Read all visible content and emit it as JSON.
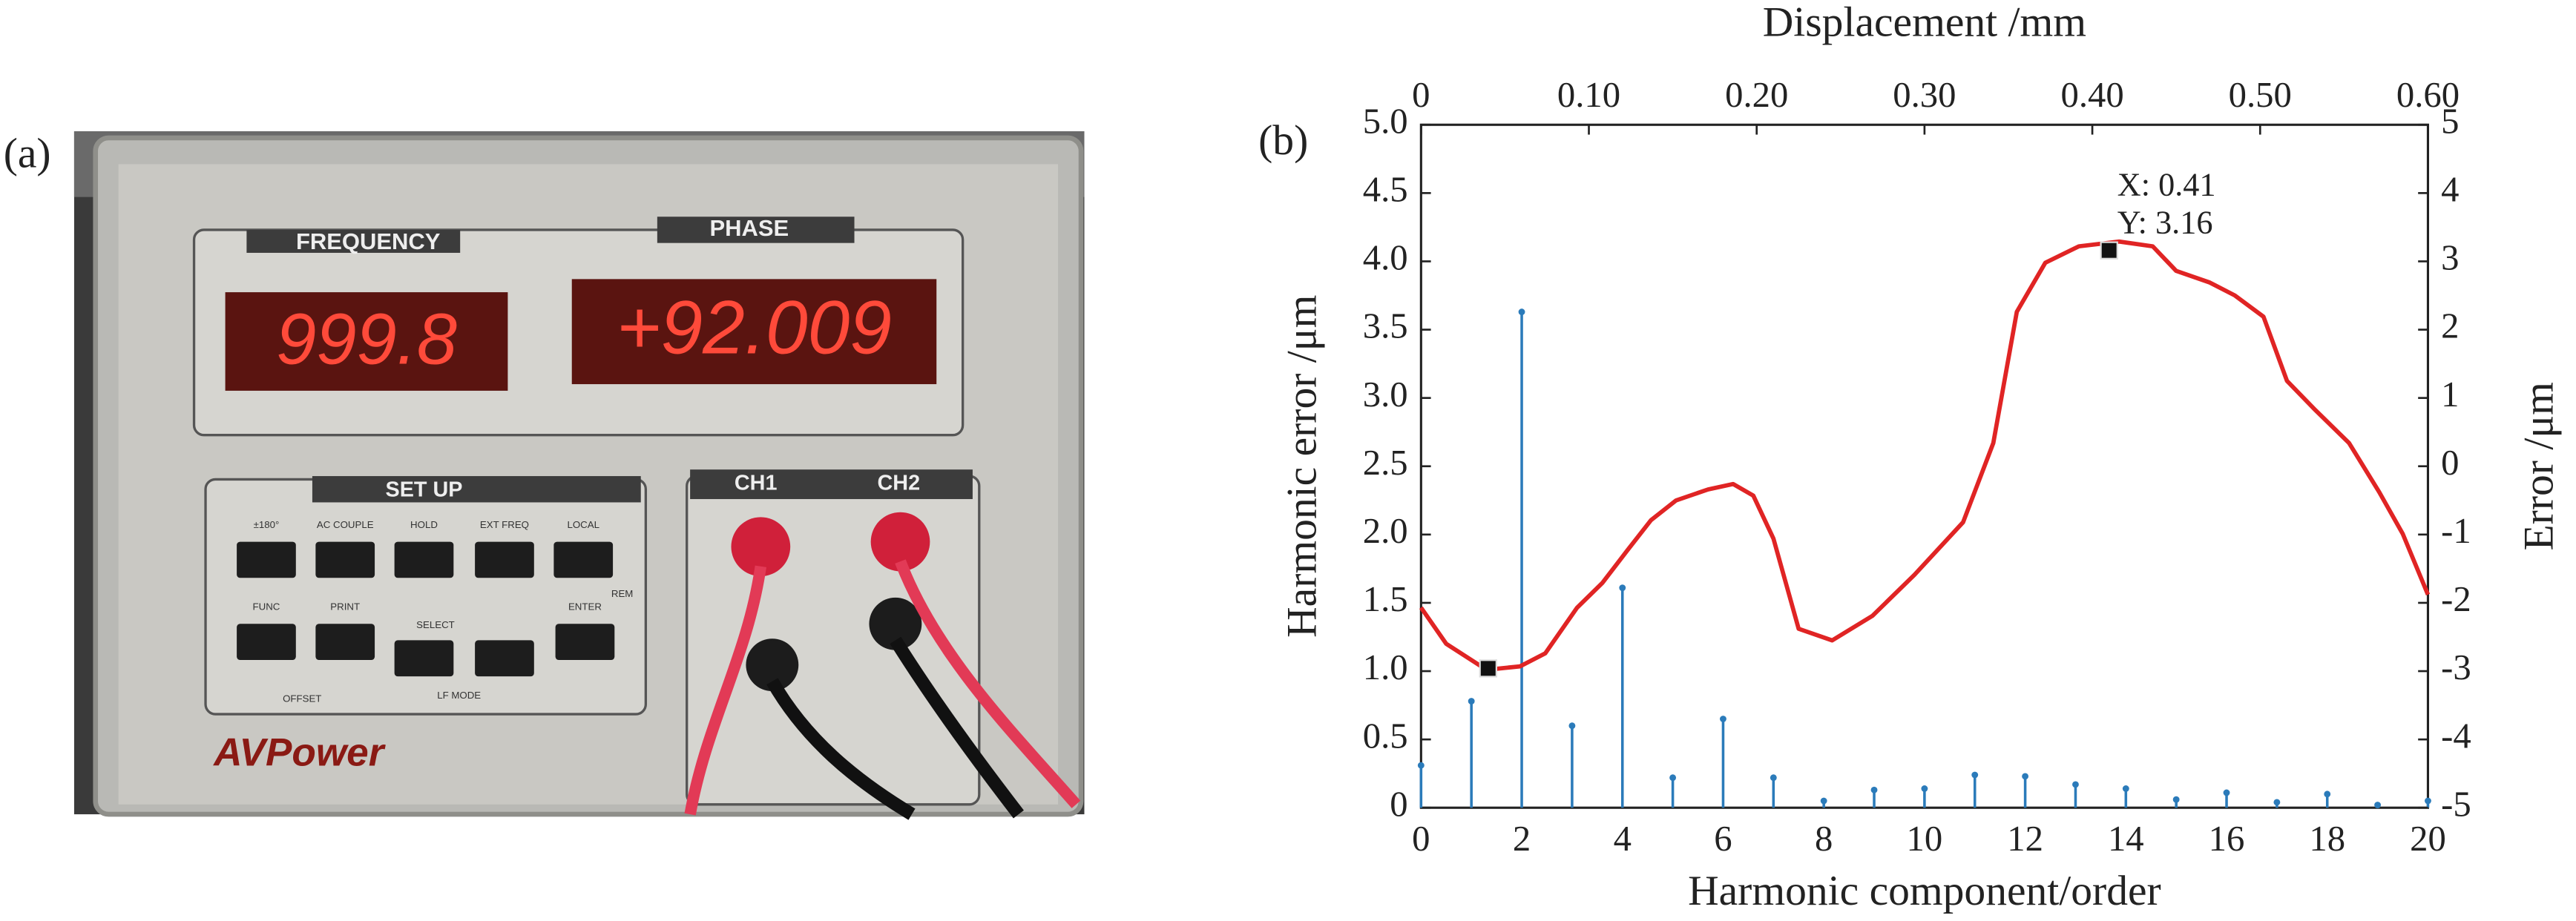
{
  "panels": {
    "a": "(a)",
    "b": "(b)"
  },
  "photo": {
    "frequency_label": "FREQUENCY",
    "phase_label": "PHASE",
    "frequency_display": "999.8",
    "phase_display": "+92.009",
    "setup_label": "SET UP",
    "buttons": [
      "±180°",
      "AC COUPLE",
      "HOLD",
      "EXT FREQ",
      "LOCAL",
      "FUNC",
      "PRINT",
      "ENTER"
    ],
    "select_label": "SELECT",
    "indicators": [
      "REM",
      "OFFSET",
      "LF MODE"
    ],
    "channels": [
      "CH1",
      "CH2"
    ],
    "brand": "AVPower"
  },
  "chart_data": [
    {
      "type": "stem",
      "x_axis": "bottom",
      "y_axis": "left",
      "xlabel": "Harmonic component/order",
      "ylabel": "Harmonic error /μm",
      "color": "#2b7bba",
      "x": [
        0,
        1,
        2,
        3,
        4,
        5,
        6,
        7,
        8,
        9,
        10,
        11,
        12,
        13,
        14,
        15,
        16,
        17,
        18,
        19,
        20
      ],
      "values": [
        0.31,
        0.78,
        3.63,
        0.6,
        1.61,
        0.22,
        0.65,
        0.22,
        0.05,
        0.13,
        0.14,
        0.24,
        0.23,
        0.17,
        0.14,
        0.06,
        0.11,
        0.04,
        0.1,
        0.02,
        0.05
      ],
      "xlim": [
        0,
        20
      ],
      "xticks": [
        0,
        2,
        4,
        6,
        8,
        10,
        12,
        14,
        16,
        18,
        20
      ],
      "ylim": [
        0,
        5
      ],
      "yticks": [
        0,
        0.5,
        {
          "value": 1,
          "label": "1.0"
        },
        1.5,
        {
          "value": 2,
          "label": "2.0"
        },
        2.5,
        {
          "value": 3,
          "label": "3.0"
        },
        3.5,
        {
          "value": 4,
          "label": "4.0"
        },
        4.5,
        {
          "value": 5,
          "label": "5.0"
        }
      ]
    },
    {
      "type": "line",
      "x_axis": "top",
      "y_axis": "right",
      "xlabel": "Displacement /mm",
      "ylabel": "Error /μm",
      "color": "#e02424",
      "x": [
        0,
        0.015,
        0.039,
        0.059,
        0.074,
        0.093,
        0.108,
        0.123,
        0.137,
        0.152,
        0.171,
        0.186,
        0.198,
        0.21,
        0.225,
        0.245,
        0.269,
        0.294,
        0.323,
        0.341,
        0.355,
        0.372,
        0.392,
        0.416,
        0.436,
        0.45,
        0.47,
        0.485,
        0.502,
        0.516,
        0.533,
        0.553,
        0.571,
        0.585,
        0.6
      ],
      "values": [
        -2.07,
        -2.6,
        -2.98,
        -2.93,
        -2.74,
        -2.07,
        -1.71,
        -1.23,
        -0.79,
        -0.5,
        -0.34,
        -0.26,
        -0.43,
        -1.06,
        -2.38,
        -2.55,
        -2.19,
        -1.59,
        -0.82,
        0.34,
        2.26,
        2.98,
        3.22,
        3.29,
        3.22,
        2.86,
        2.69,
        2.5,
        2.19,
        1.25,
        0.82,
        0.34,
        -0.38,
        -0.99,
        -1.88
      ],
      "xlim": [
        0,
        0.6
      ],
      "xticks": [
        0,
        {
          "value": 0.1,
          "label": "0.10"
        },
        {
          "value": 0.2,
          "label": "0.20"
        },
        {
          "value": 0.3,
          "label": "0.30"
        },
        {
          "value": 0.4,
          "label": "0.40"
        },
        {
          "value": 0.5,
          "label": "0.50"
        },
        {
          "value": 0.6,
          "label": "0.60"
        }
      ],
      "ylim": [
        -5,
        5
      ],
      "yticks": [
        -5,
        -4,
        -3,
        -2,
        -1,
        0,
        1,
        2,
        3,
        4,
        5
      ],
      "markers": [
        {
          "x": 0.41,
          "y": 3.16,
          "labels": [
            "X: 0.41",
            "Y: 3.16"
          ]
        },
        {
          "x": 0.04,
          "y": -2.96
        }
      ]
    }
  ]
}
